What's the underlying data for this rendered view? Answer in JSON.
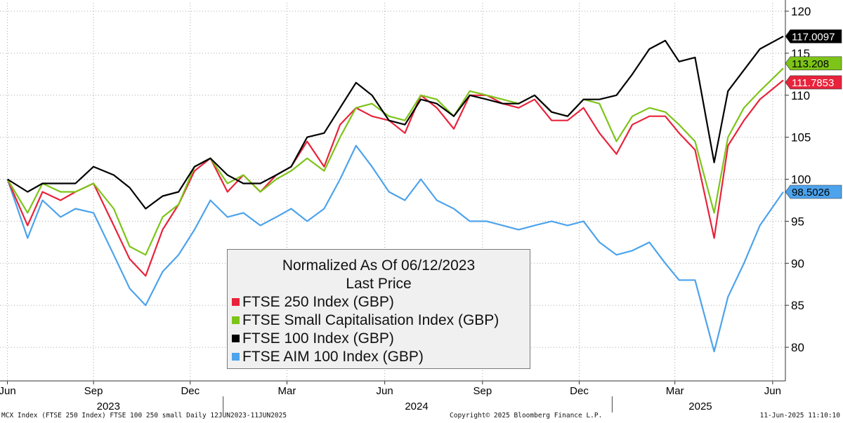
{
  "chart_data": {
    "type": "line",
    "title": "Normalized As Of 06/12/2023",
    "subtitle": "Last Price",
    "ylim": [
      76,
      121
    ],
    "yticks": [
      80,
      85,
      90,
      95,
      100,
      105,
      110,
      115,
      120
    ],
    "xticks": [
      {
        "label": "Jun",
        "date": "2023-06-12"
      },
      {
        "label": "Sep",
        "date": "2023-09-01"
      },
      {
        "label": "Dec",
        "date": "2023-12-01"
      },
      {
        "label": "Mar",
        "date": "2024-03-01"
      },
      {
        "label": "Jun",
        "date": "2024-06-01"
      },
      {
        "label": "Sep",
        "date": "2024-09-01"
      },
      {
        "label": "Dec",
        "date": "2024-12-01"
      },
      {
        "label": "Mar",
        "date": "2025-03-01"
      },
      {
        "label": "Jun",
        "date": "2025-06-01"
      }
    ],
    "years": [
      {
        "label": "2023",
        "date": "2023-09-15"
      },
      {
        "label": "2024",
        "date": "2024-07-01"
      },
      {
        "label": "2025",
        "date": "2025-03-25"
      }
    ],
    "year_dividers": [
      "2024-01-01",
      "2025-01-01"
    ],
    "x": [
      "2023-06-12",
      "2023-07-01",
      "2023-07-15",
      "2023-08-01",
      "2023-08-15",
      "2023-09-01",
      "2023-09-20",
      "2023-10-05",
      "2023-10-20",
      "2023-11-05",
      "2023-11-20",
      "2023-12-05",
      "2023-12-20",
      "2024-01-05",
      "2024-01-20",
      "2024-02-05",
      "2024-02-20",
      "2024-03-05",
      "2024-03-20",
      "2024-04-05",
      "2024-04-20",
      "2024-05-05",
      "2024-05-20",
      "2024-06-05",
      "2024-06-20",
      "2024-07-05",
      "2024-07-20",
      "2024-08-05",
      "2024-08-20",
      "2024-09-05",
      "2024-09-20",
      "2024-10-05",
      "2024-10-20",
      "2024-11-05",
      "2024-11-20",
      "2024-12-05",
      "2024-12-20",
      "2025-01-05",
      "2025-01-20",
      "2025-02-05",
      "2025-02-20",
      "2025-03-05",
      "2025-03-20",
      "2025-04-07",
      "2025-04-20",
      "2025-05-05",
      "2025-05-20",
      "2025-06-11"
    ],
    "series": [
      {
        "name": "FTSE 250 Index (GBP)",
        "color": "#e8233b",
        "last": "111.7853",
        "values": [
          100,
          94.5,
          98.5,
          97.5,
          98.5,
          99.5,
          94.5,
          90.5,
          88.5,
          94,
          97,
          101,
          102.5,
          98.5,
          100.5,
          98.5,
          100.5,
          101.5,
          104.5,
          101.5,
          106.5,
          108.5,
          107.5,
          107,
          105.5,
          110,
          108.5,
          106,
          110,
          110,
          109,
          108.5,
          109.5,
          107,
          107,
          108.5,
          105.5,
          103,
          106.5,
          107.5,
          107.5,
          105.5,
          103.5,
          93,
          104,
          107,
          109.5,
          111.7853
        ]
      },
      {
        "name": "FTSE Small Capitalisation Index (GBP)",
        "color": "#7dc418",
        "last": "113.208",
        "values": [
          100,
          96,
          99.5,
          98.5,
          98.5,
          99.5,
          96.5,
          92,
          91,
          95.5,
          97,
          101.5,
          102.5,
          99.5,
          100.5,
          98.5,
          100,
          101,
          102.5,
          101,
          105,
          108.5,
          109,
          107.5,
          107,
          110,
          109.5,
          107.5,
          110.5,
          110,
          109.5,
          109,
          110,
          108,
          107.5,
          109.5,
          109,
          104.5,
          107.5,
          108.5,
          108,
          106.5,
          104.5,
          96,
          105,
          108.5,
          110.5,
          113.208
        ]
      },
      {
        "name": "FTSE 100 Index (GBP)",
        "color": "#000000",
        "last": "117.0097",
        "values": [
          100,
          98.5,
          99.5,
          99.5,
          99.5,
          101.5,
          100.5,
          99,
          96.5,
          98,
          98.5,
          101.5,
          102.5,
          100.5,
          99.5,
          99.5,
          100.5,
          101.5,
          105,
          105.5,
          108.5,
          111.5,
          110,
          107,
          106.5,
          109.5,
          109,
          107.5,
          110,
          109.5,
          109,
          109,
          110,
          108,
          107.5,
          109.5,
          109.5,
          110,
          112.5,
          115.5,
          116.5,
          114,
          114.5,
          102,
          110.5,
          113,
          115.5,
          117.0097
        ]
      },
      {
        "name": "FTSE AIM 100 Index (GBP)",
        "color": "#4da3ec",
        "last": "98.5026",
        "values": [
          100,
          93,
          97.5,
          95.5,
          96.5,
          96,
          91,
          87,
          85,
          89,
          91,
          94,
          97.5,
          95.5,
          96,
          94.5,
          95.5,
          96.5,
          95,
          96.5,
          100,
          104,
          101.5,
          98.5,
          97.5,
          100,
          97.5,
          96.5,
          95,
          95,
          94.5,
          94,
          94.5,
          95,
          94.5,
          95,
          92.5,
          91,
          91.5,
          92.5,
          90,
          88,
          88,
          79.5,
          86,
          90,
          94.5,
          98.5026
        ]
      }
    ]
  },
  "footer": {
    "left": "MCX Index (FTSE 250 Index) FTSE 100 250 small  Daily 12JUN2023-11JUN2025",
    "center": "Copyright© 2025 Bloomberg Finance L.P.",
    "right": "11-Jun-2025 11:10:10"
  }
}
